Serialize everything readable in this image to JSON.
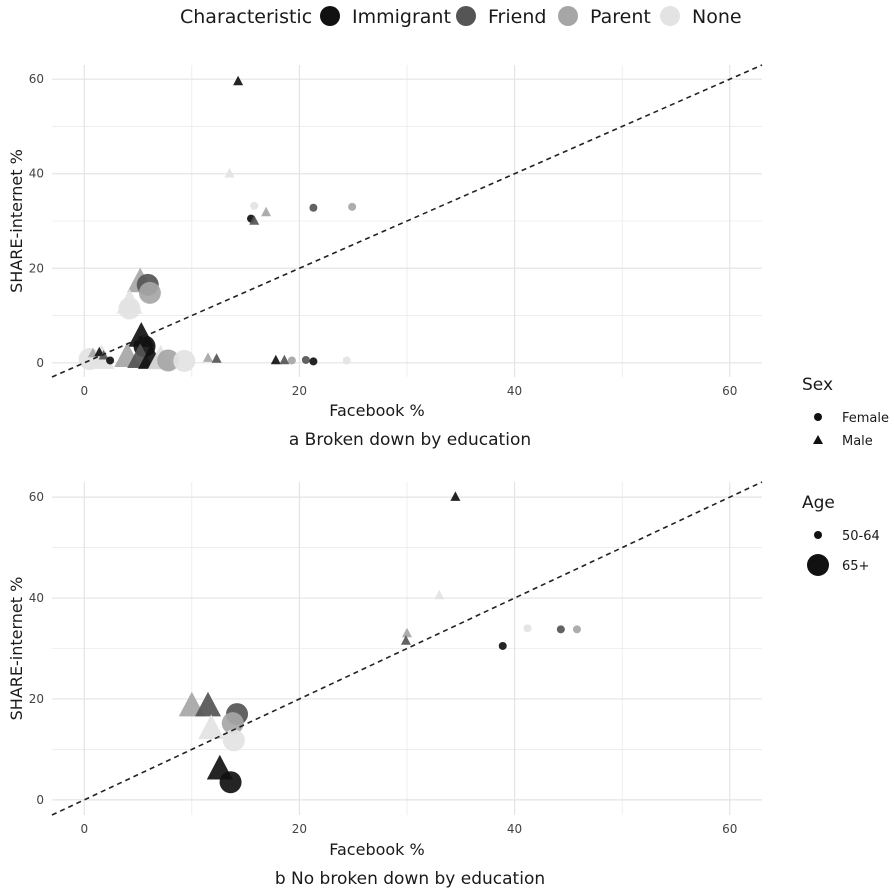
{
  "colors": {
    "Immigrant": "#111111",
    "Friend": "#555555",
    "Parent": "#a6a6a6",
    "None": "#e3e3e3",
    "grid": "#e4e4e4",
    "text": "#1a1a1a",
    "ref_line": "#222222"
  },
  "legend": {
    "characteristic": {
      "title": "Characteristic",
      "items": [
        "Immigrant",
        "Friend",
        "Parent",
        "None"
      ]
    },
    "sex": {
      "title": "Sex",
      "items": [
        {
          "label": "Female",
          "shape": "circle"
        },
        {
          "label": "Male",
          "shape": "triangle"
        }
      ]
    },
    "age": {
      "title": "Age",
      "items": [
        {
          "label": "50-64",
          "size": "small"
        },
        {
          "label": "65+",
          "size": "large"
        }
      ]
    }
  },
  "chart_data": [
    {
      "type": "scatter",
      "caption": "a  Broken down by education",
      "xlabel": "Facebook %",
      "ylabel": "SHARE-internet %",
      "xlim": [
        -3,
        63
      ],
      "ylim": [
        -3,
        63
      ],
      "xticks": [
        0,
        20,
        40,
        60
      ],
      "yticks": [
        0,
        20,
        40,
        60
      ],
      "grid": true,
      "reference_line": "y = x",
      "points": [
        {
          "x": 14.3,
          "y": 59.5,
          "char": "Immigrant",
          "sex": "Male",
          "age": "50-64"
        },
        {
          "x": 13.5,
          "y": 40.0,
          "char": "None",
          "sex": "Male",
          "age": "50-64"
        },
        {
          "x": 15.5,
          "y": 30.5,
          "char": "Immigrant",
          "sex": "Female",
          "age": "50-64"
        },
        {
          "x": 15.8,
          "y": 30.0,
          "char": "Friend",
          "sex": "Male",
          "age": "50-64"
        },
        {
          "x": 15.8,
          "y": 33.2,
          "char": "None",
          "sex": "Female",
          "age": "50-64"
        },
        {
          "x": 16.9,
          "y": 31.8,
          "char": "Parent",
          "sex": "Male",
          "age": "50-64"
        },
        {
          "x": 21.3,
          "y": 32.8,
          "char": "Friend",
          "sex": "Female",
          "age": "50-64"
        },
        {
          "x": 24.9,
          "y": 33.0,
          "char": "Parent",
          "sex": "Female",
          "age": "50-64"
        },
        {
          "x": 11.5,
          "y": 1.0,
          "char": "Parent",
          "sex": "Male",
          "age": "50-64"
        },
        {
          "x": 12.3,
          "y": 0.8,
          "char": "Friend",
          "sex": "Male",
          "age": "50-64"
        },
        {
          "x": 17.8,
          "y": 0.5,
          "char": "Immigrant",
          "sex": "Male",
          "age": "50-64"
        },
        {
          "x": 18.6,
          "y": 0.5,
          "char": "Friend",
          "sex": "Male",
          "age": "50-64"
        },
        {
          "x": 19.3,
          "y": 0.5,
          "char": "Parent",
          "sex": "Female",
          "age": "50-64"
        },
        {
          "x": 20.6,
          "y": 0.6,
          "char": "Friend",
          "sex": "Female",
          "age": "50-64"
        },
        {
          "x": 21.3,
          "y": 0.3,
          "char": "Immigrant",
          "sex": "Female",
          "age": "50-64"
        },
        {
          "x": 24.4,
          "y": 0.5,
          "char": "None",
          "sex": "Female",
          "age": "50-64"
        },
        {
          "x": 0.8,
          "y": 2.0,
          "char": "Parent",
          "sex": "Male",
          "age": "50-64"
        },
        {
          "x": 1.4,
          "y": 2.2,
          "char": "Immigrant",
          "sex": "Male",
          "age": "50-64"
        },
        {
          "x": 1.8,
          "y": 1.5,
          "char": "Friend",
          "sex": "Male",
          "age": "50-64"
        },
        {
          "x": 2.4,
          "y": 0.5,
          "char": "Immigrant",
          "sex": "Female",
          "age": "50-64"
        },
        {
          "x": 5.2,
          "y": 17.0,
          "char": "Parent",
          "sex": "Male",
          "age": "65+"
        },
        {
          "x": 5.9,
          "y": 16.5,
          "char": "Friend",
          "sex": "Female",
          "age": "65+"
        },
        {
          "x": 6.1,
          "y": 14.8,
          "char": "Parent",
          "sex": "Female",
          "age": "65+"
        },
        {
          "x": 4.2,
          "y": 12.5,
          "char": "None",
          "sex": "Male",
          "age": "65+"
        },
        {
          "x": 4.2,
          "y": 11.5,
          "char": "None",
          "sex": "Female",
          "age": "65+"
        },
        {
          "x": 5.3,
          "y": 5.5,
          "char": "Immigrant",
          "sex": "Male",
          "age": "65+"
        },
        {
          "x": 5.6,
          "y": 3.5,
          "char": "Immigrant",
          "sex": "Female",
          "age": "65+"
        },
        {
          "x": 0.5,
          "y": 0.8,
          "char": "None",
          "sex": "Female",
          "age": "65+"
        },
        {
          "x": 1.6,
          "y": 0.8,
          "char": "None",
          "sex": "Male",
          "age": "65+"
        },
        {
          "x": 4.0,
          "y": 1.2,
          "char": "Parent",
          "sex": "Male",
          "age": "65+"
        },
        {
          "x": 5.2,
          "y": 1.0,
          "char": "Friend",
          "sex": "Male",
          "age": "65+"
        },
        {
          "x": 6.2,
          "y": 0.8,
          "char": "Immigrant",
          "sex": "Male",
          "age": "65+"
        },
        {
          "x": 7.1,
          "y": 0.7,
          "char": "None",
          "sex": "Male",
          "age": "65+"
        },
        {
          "x": 7.8,
          "y": 0.5,
          "char": "Parent",
          "sex": "Female",
          "age": "65+"
        },
        {
          "x": 9.3,
          "y": 0.4,
          "char": "None",
          "sex": "Female",
          "age": "65+"
        }
      ]
    },
    {
      "type": "scatter",
      "caption": "b  No broken down by education",
      "xlabel": "Facebook %",
      "ylabel": "SHARE-internet %",
      "xlim": [
        -3,
        63
      ],
      "ylim": [
        -3,
        63
      ],
      "xticks": [
        0,
        20,
        40,
        60
      ],
      "yticks": [
        0,
        20,
        40,
        60
      ],
      "grid": true,
      "reference_line": "y = x",
      "points": [
        {
          "x": 34.5,
          "y": 60.0,
          "char": "Immigrant",
          "sex": "Male",
          "age": "50-64"
        },
        {
          "x": 33.0,
          "y": 40.5,
          "char": "None",
          "sex": "Male",
          "age": "50-64"
        },
        {
          "x": 30.0,
          "y": 33.0,
          "char": "Parent",
          "sex": "Male",
          "age": "50-64"
        },
        {
          "x": 29.9,
          "y": 31.5,
          "char": "Friend",
          "sex": "Male",
          "age": "50-64"
        },
        {
          "x": 38.9,
          "y": 30.5,
          "char": "Immigrant",
          "sex": "Female",
          "age": "50-64"
        },
        {
          "x": 41.2,
          "y": 34.0,
          "char": "None",
          "sex": "Female",
          "age": "50-64"
        },
        {
          "x": 44.3,
          "y": 33.8,
          "char": "Friend",
          "sex": "Female",
          "age": "50-64"
        },
        {
          "x": 45.8,
          "y": 33.8,
          "char": "Parent",
          "sex": "Female",
          "age": "50-64"
        },
        {
          "x": 10.0,
          "y": 18.5,
          "char": "Parent",
          "sex": "Male",
          "age": "65+"
        },
        {
          "x": 11.5,
          "y": 18.5,
          "char": "Friend",
          "sex": "Male",
          "age": "65+"
        },
        {
          "x": 14.2,
          "y": 17.0,
          "char": "Friend",
          "sex": "Female",
          "age": "65+"
        },
        {
          "x": 13.8,
          "y": 15.2,
          "char": "Parent",
          "sex": "Female",
          "age": "65+"
        },
        {
          "x": 11.8,
          "y": 14.0,
          "char": "None",
          "sex": "Male",
          "age": "65+"
        },
        {
          "x": 13.9,
          "y": 11.8,
          "char": "None",
          "sex": "Female",
          "age": "65+"
        },
        {
          "x": 12.6,
          "y": 6.0,
          "char": "Immigrant",
          "sex": "Male",
          "age": "65+"
        },
        {
          "x": 13.6,
          "y": 3.5,
          "char": "Immigrant",
          "sex": "Female",
          "age": "65+"
        }
      ]
    }
  ]
}
